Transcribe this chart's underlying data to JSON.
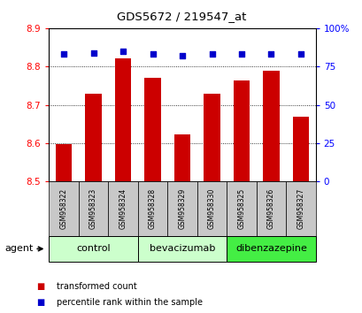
{
  "title": "GDS5672 / 219547_at",
  "samples": [
    "GSM958322",
    "GSM958323",
    "GSM958324",
    "GSM958328",
    "GSM958329",
    "GSM958330",
    "GSM958325",
    "GSM958326",
    "GSM958327"
  ],
  "bar_values": [
    8.597,
    8.728,
    8.822,
    8.77,
    8.622,
    8.73,
    8.763,
    8.79,
    8.67
  ],
  "percentile_values": [
    83,
    84,
    85,
    83,
    82,
    83,
    83,
    83,
    83
  ],
  "bar_color": "#cc0000",
  "dot_color": "#0000cc",
  "ylim_left": [
    8.5,
    8.9
  ],
  "ylim_right": [
    0,
    100
  ],
  "yticks_left": [
    8.5,
    8.6,
    8.7,
    8.8,
    8.9
  ],
  "yticks_right": [
    0,
    25,
    50,
    75,
    100
  ],
  "groups": [
    {
      "label": "control",
      "indices": [
        0,
        1,
        2
      ],
      "color": "#ccffcc"
    },
    {
      "label": "bevacizumab",
      "indices": [
        3,
        4,
        5
      ],
      "color": "#ccffcc"
    },
    {
      "label": "dibenzazepine",
      "indices": [
        6,
        7,
        8
      ],
      "color": "#44ee44"
    }
  ],
  "agent_label": "agent",
  "legend_bar_label": "transformed count",
  "legend_dot_label": "percentile rank within the sample",
  "bar_width": 0.55,
  "sample_area_bg": "#c8c8c8"
}
